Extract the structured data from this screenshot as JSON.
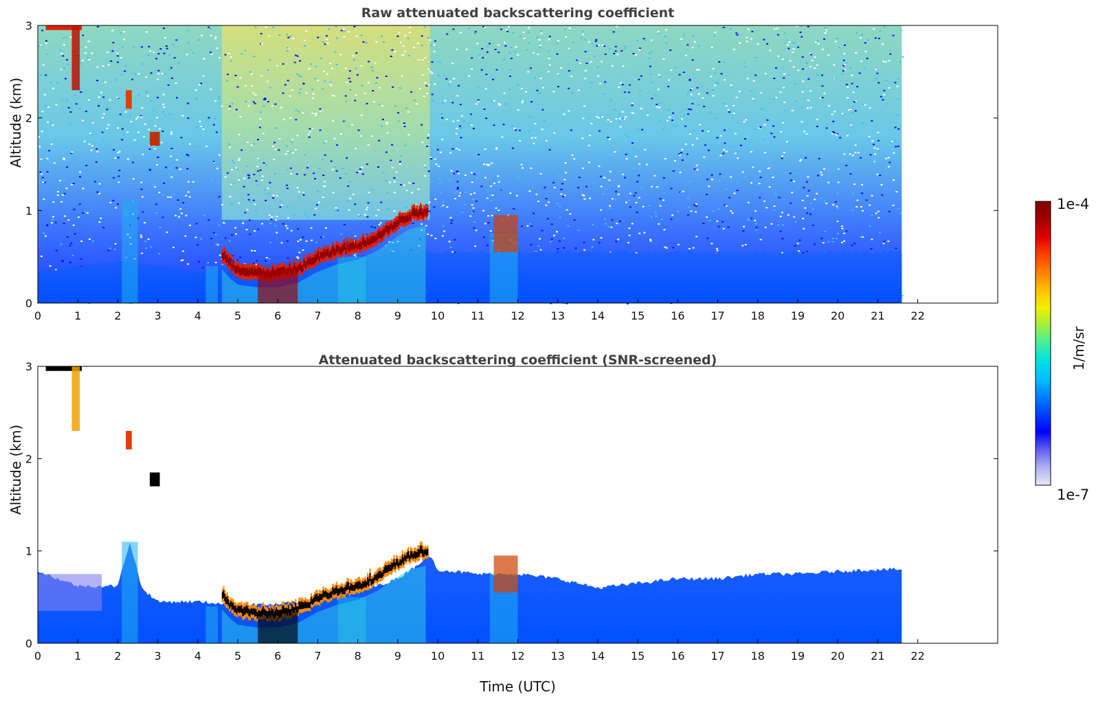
{
  "chart_data": [
    {
      "type": "heatmap",
      "title": "Raw attenuated backscattering coefficient",
      "xlabel": "",
      "ylabel": "Altitude (km)",
      "xlim": [
        0,
        24
      ],
      "ylim": [
        0,
        3
      ],
      "xticks": [
        0,
        1,
        2,
        3,
        4,
        5,
        6,
        7,
        8,
        9,
        10,
        11,
        12,
        13,
        14,
        15,
        16,
        17,
        18,
        19,
        20,
        21,
        22
      ],
      "yticks": [
        0,
        1,
        2,
        3
      ],
      "data_end_time": 21.6,
      "layer_top": [
        [
          0.3,
          0.35
        ],
        [
          1,
          0.4
        ],
        [
          2,
          0.45
        ],
        [
          3,
          0.4
        ],
        [
          4,
          0.35
        ],
        [
          5,
          0.4
        ],
        [
          6,
          0.42
        ],
        [
          7,
          0.45
        ],
        [
          8,
          0.5
        ],
        [
          9,
          0.55
        ],
        [
          10,
          0.55
        ],
        [
          11,
          0.55
        ],
        [
          12,
          0.55
        ],
        [
          13,
          0.55
        ],
        [
          14,
          0.55
        ],
        [
          15,
          0.55
        ],
        [
          16,
          0.55
        ],
        [
          17,
          0.55
        ],
        [
          18,
          0.55
        ],
        [
          19,
          0.55
        ],
        [
          20,
          0.55
        ],
        [
          21,
          0.55
        ],
        [
          21.6,
          0.55
        ]
      ],
      "cloud_base": [
        [
          4.6,
          0.45
        ],
        [
          4.8,
          0.35
        ],
        [
          5,
          0.28
        ],
        [
          5.5,
          0.25
        ],
        [
          6,
          0.25
        ],
        [
          6.5,
          0.3
        ],
        [
          7,
          0.42
        ],
        [
          7.5,
          0.5
        ],
        [
          8,
          0.55
        ],
        [
          8.5,
          0.65
        ],
        [
          9,
          0.8
        ],
        [
          9.3,
          0.88
        ],
        [
          9.7,
          0.92
        ]
      ]
    },
    {
      "type": "heatmap",
      "title": "Attenuated backscattering coefficient (SNR-screened)",
      "xlabel": "Time (UTC)",
      "ylabel": "Altitude (km)",
      "xlim": [
        0,
        24
      ],
      "ylim": [
        0,
        3
      ],
      "xticks": [
        0,
        1,
        2,
        3,
        4,
        5,
        6,
        7,
        8,
        9,
        10,
        11,
        12,
        13,
        14,
        15,
        16,
        17,
        18,
        19,
        20,
        21,
        22
      ],
      "yticks": [
        0,
        1,
        2,
        3
      ],
      "data_end_time": 21.6,
      "layer_top": [
        [
          0,
          0.78
        ],
        [
          1,
          0.62
        ],
        [
          2,
          0.62
        ],
        [
          2.3,
          1.1
        ],
        [
          2.6,
          0.6
        ],
        [
          3,
          0.45
        ],
        [
          4,
          0.45
        ],
        [
          5,
          0.42
        ],
        [
          6,
          0.42
        ],
        [
          7,
          0.48
        ],
        [
          8,
          0.55
        ],
        [
          9,
          0.7
        ],
        [
          9.8,
          0.95
        ],
        [
          10,
          0.8
        ],
        [
          11,
          0.75
        ],
        [
          12,
          0.75
        ],
        [
          13,
          0.7
        ],
        [
          14,
          0.6
        ],
        [
          15,
          0.65
        ],
        [
          16,
          0.7
        ],
        [
          17,
          0.7
        ],
        [
          18,
          0.75
        ],
        [
          19,
          0.75
        ],
        [
          20,
          0.78
        ],
        [
          21,
          0.8
        ],
        [
          21.6,
          0.8
        ]
      ],
      "cloud_base": [
        [
          4.6,
          0.45
        ],
        [
          4.8,
          0.35
        ],
        [
          5,
          0.28
        ],
        [
          5.5,
          0.25
        ],
        [
          6,
          0.25
        ],
        [
          6.5,
          0.3
        ],
        [
          7,
          0.42
        ],
        [
          7.5,
          0.5
        ],
        [
          8,
          0.55
        ],
        [
          8.5,
          0.65
        ],
        [
          9,
          0.8
        ],
        [
          9.3,
          0.88
        ],
        [
          9.7,
          0.92
        ]
      ]
    }
  ],
  "colorbar": {
    "label": "1/m/sr",
    "max_label": "1e-4",
    "min_label": "1e-7",
    "colormap": [
      "#e8e8f8",
      "#b0b0f0",
      "#6060f0",
      "#0000ff",
      "#0040ff",
      "#0080ff",
      "#00c0ff",
      "#00e0e0",
      "#40f0a0",
      "#a0f040",
      "#f0f000",
      "#ffc000",
      "#ff8000",
      "#ff4000",
      "#e00000",
      "#a00000",
      "#800000"
    ]
  }
}
